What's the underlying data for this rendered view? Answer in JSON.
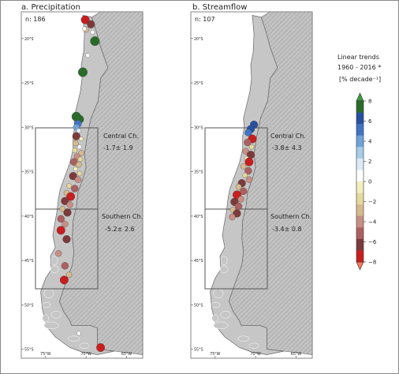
{
  "figure": {
    "panels": [
      {
        "title": "a. Precipitation",
        "n_label": "n: 186",
        "boxes": [
          {
            "name": "Central Ch.",
            "value": "-1.7± 1.9"
          },
          {
            "name": "Southern Ch.",
            "value": "-5.2± 2.6"
          }
        ],
        "lat_ticks": [
          "20°S",
          "25°S",
          "30°S",
          "35°S",
          "40°S",
          "45°S",
          "50°S",
          "55°S"
        ],
        "lon_ticks": [
          "75°W",
          "70°W",
          "65°W"
        ]
      },
      {
        "title": "b. Streamflow",
        "n_label": "n: 107",
        "boxes": [
          {
            "name": "Central Ch.",
            "value": "-3.8± 4.3"
          },
          {
            "name": "Southern Ch.",
            "value": "-3.4± 0.8"
          }
        ],
        "lat_ticks": [
          "20°S",
          "25°S",
          "30°S",
          "35°S",
          "40°S",
          "45°S",
          "50°S",
          "55°S"
        ],
        "lon_ticks": [
          "75°W",
          "70°W",
          "65°W"
        ]
      }
    ],
    "colorbar": {
      "title_line1": "Linear trends",
      "title_line2": "1960 - 2016 *",
      "title_line3": "[% decade⁻¹]",
      "tick_labels": [
        "8",
        "6",
        "4",
        "2",
        "0",
        "−2",
        "−4",
        "−6",
        "−8"
      ],
      "tick_values": [
        8,
        6,
        4,
        2,
        0,
        -2,
        -4,
        -6,
        -8
      ],
      "colors": [
        "#2a6b2a",
        "#2850a0",
        "#3f73c4",
        "#6fa3d8",
        "#a9cce8",
        "#dceaf4",
        "#ffffff",
        "#f3efbd",
        "#e6d99c",
        "#d7b98e",
        "#c98f84",
        "#ad6060",
        "#7d3a3a",
        "#c81e1e"
      ],
      "extend_top_color": "#3c9a3c",
      "extend_bottom_color": "#f57a5a"
    },
    "colors": {
      "ocean": "#ffffff",
      "land_chile": "#c6c6c6",
      "land_argentina": "#c2c2c2",
      "border": "#666666"
    },
    "chart_data": [
      {
        "type": "scatter",
        "title": "a. Precipitation",
        "xlabel": "",
        "ylabel": "",
        "xlim": [
          -78,
          -63
        ],
        "ylim": [
          -56,
          -17
        ],
        "points": [
          {
            "lon": -70.1,
            "lat": -17.9,
            "v": -7
          },
          {
            "lon": -69.4,
            "lat": -18.4,
            "v": -6
          },
          {
            "lon": -70.0,
            "lat": -19.0,
            "v": -3
          },
          {
            "lon": -70.2,
            "lat": -18.9,
            "v": 1
          },
          {
            "lon": -69.2,
            "lat": -19.3,
            "v": 1
          },
          {
            "lon": -68.9,
            "lat": -20.3,
            "v": 8
          },
          {
            "lon": -69.8,
            "lat": -21.9,
            "v": 1
          },
          {
            "lon": -70.4,
            "lat": -23.8,
            "v": 8
          },
          {
            "lon": -71.2,
            "lat": -28.8,
            "v": 8
          },
          {
            "lon": -70.8,
            "lat": -29.1,
            "v": 7
          },
          {
            "lon": -71.0,
            "lat": -29.6,
            "v": 5
          },
          {
            "lon": -71.2,
            "lat": -30.0,
            "v": 4
          },
          {
            "lon": -70.9,
            "lat": -30.4,
            "v": 2
          },
          {
            "lon": -71.2,
            "lat": -31.0,
            "v": -6
          },
          {
            "lon": -70.6,
            "lat": -31.3,
            "v": -1
          },
          {
            "lon": -71.3,
            "lat": -31.8,
            "v": -3
          },
          {
            "lon": -70.8,
            "lat": -32.2,
            "v": 1
          },
          {
            "lon": -71.4,
            "lat": -32.6,
            "v": -2
          },
          {
            "lon": -70.6,
            "lat": -32.9,
            "v": -3
          },
          {
            "lon": -71.1,
            "lat": -33.3,
            "v": -4
          },
          {
            "lon": -70.7,
            "lat": -33.6,
            "v": -2
          },
          {
            "lon": -71.5,
            "lat": -33.9,
            "v": -5
          },
          {
            "lon": -70.9,
            "lat": -34.2,
            "v": -3
          },
          {
            "lon": -71.3,
            "lat": -34.7,
            "v": -1
          },
          {
            "lon": -70.8,
            "lat": -35.2,
            "v": -2
          },
          {
            "lon": -71.6,
            "lat": -35.5,
            "v": -6
          },
          {
            "lon": -71.0,
            "lat": -35.9,
            "v": -4
          },
          {
            "lon": -72.1,
            "lat": -36.6,
            "v": -2
          },
          {
            "lon": -71.4,
            "lat": -36.9,
            "v": -5
          },
          {
            "lon": -72.4,
            "lat": -37.4,
            "v": -3
          },
          {
            "lon": -71.9,
            "lat": -37.8,
            "v": -7
          },
          {
            "lon": -72.6,
            "lat": -38.3,
            "v": -6
          },
          {
            "lon": -72.0,
            "lat": -38.7,
            "v": -4
          },
          {
            "lon": -72.9,
            "lat": -39.2,
            "v": -3
          },
          {
            "lon": -72.3,
            "lat": -39.6,
            "v": -6
          },
          {
            "lon": -73.1,
            "lat": -40.3,
            "v": -5
          },
          {
            "lon": -72.6,
            "lat": -40.9,
            "v": -4
          },
          {
            "lon": -73.1,
            "lat": -41.6,
            "v": -7
          },
          {
            "lon": -72.4,
            "lat": -42.6,
            "v": -6
          },
          {
            "lon": -73.4,
            "lat": -44.2,
            "v": -4
          },
          {
            "lon": -72.6,
            "lat": -45.6,
            "v": -5
          },
          {
            "lon": -72.1,
            "lat": -46.6,
            "v": -3
          },
          {
            "lon": -72.7,
            "lat": -47.2,
            "v": -7
          },
          {
            "lon": -70.9,
            "lat": -53.2,
            "v": 1
          },
          {
            "lon": -68.2,
            "lat": -54.8,
            "v": -7
          }
        ]
      },
      {
        "type": "scatter",
        "title": "b. Streamflow",
        "xlabel": "",
        "ylabel": "",
        "xlim": [
          -78,
          -63
        ],
        "ylim": [
          -56,
          -17
        ],
        "points": [
          {
            "lon": -70.2,
            "lat": -29.7,
            "v": 6
          },
          {
            "lon": -70.6,
            "lat": -30.2,
            "v": 6
          },
          {
            "lon": -70.9,
            "lat": -30.6,
            "v": 5
          },
          {
            "lon": -70.4,
            "lat": -31.3,
            "v": -7
          },
          {
            "lon": -71.0,
            "lat": -31.7,
            "v": -5
          },
          {
            "lon": -70.5,
            "lat": -32.2,
            "v": -2
          },
          {
            "lon": -71.2,
            "lat": -32.7,
            "v": -4
          },
          {
            "lon": -70.6,
            "lat": -33.1,
            "v": -6
          },
          {
            "lon": -71.1,
            "lat": -33.5,
            "v": -1
          },
          {
            "lon": -70.8,
            "lat": -33.9,
            "v": -7
          },
          {
            "lon": -71.5,
            "lat": -34.4,
            "v": -3
          },
          {
            "lon": -70.9,
            "lat": -34.9,
            "v": -5
          },
          {
            "lon": -71.3,
            "lat": -35.4,
            "v": -2
          },
          {
            "lon": -70.8,
            "lat": -35.9,
            "v": -4
          },
          {
            "lon": -71.7,
            "lat": -36.3,
            "v": -6
          },
          {
            "lon": -72.1,
            "lat": -36.7,
            "v": -3
          },
          {
            "lon": -71.5,
            "lat": -37.2,
            "v": -5
          },
          {
            "lon": -72.3,
            "lat": -37.6,
            "v": -7
          },
          {
            "lon": -71.8,
            "lat": -38.1,
            "v": -4
          },
          {
            "lon": -72.6,
            "lat": -38.4,
            "v": -6
          },
          {
            "lon": -72.1,
            "lat": -38.9,
            "v": -5
          },
          {
            "lon": -72.8,
            "lat": -39.3,
            "v": -3
          },
          {
            "lon": -72.3,
            "lat": -39.7,
            "v": -6
          },
          {
            "lon": -72.9,
            "lat": -40.1,
            "v": -4
          }
        ]
      }
    ]
  }
}
